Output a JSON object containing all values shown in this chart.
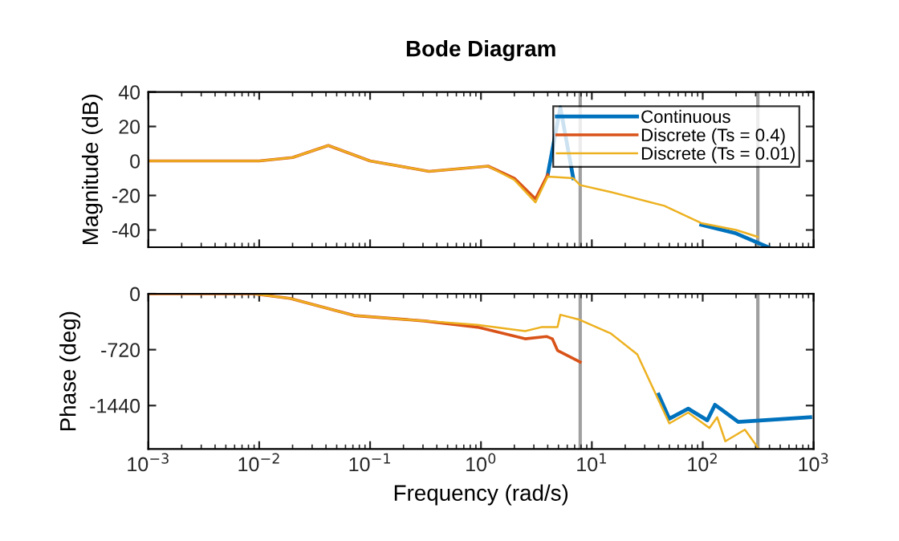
{
  "chart_data": [
    {
      "type": "line",
      "title": "Bode Diagram",
      "ylabel": "Magnitude (dB)",
      "log": "x",
      "xlim": [
        0.001,
        1000
      ],
      "xticks": [
        {
          "value": 0.001,
          "label": null
        },
        {
          "value": 0.01,
          "label": null
        },
        {
          "value": 0.1,
          "label": null
        },
        {
          "value": 1,
          "label": null
        },
        {
          "value": 10,
          "label": null
        },
        {
          "value": 100,
          "label": null
        },
        {
          "value": 1000,
          "label": null
        }
      ],
      "ylim": [
        -50,
        40
      ],
      "yticks": [
        -40,
        -20,
        0,
        20,
        40
      ],
      "tick_labels": "y",
      "grid": false,
      "legend": "top right",
      "ref_lines": [
        {
          "axis": "x",
          "value": 7.854,
          "color": "#a0a0a0"
        },
        {
          "axis": "x",
          "value": 314.16,
          "color": "#a0a0a0"
        }
      ],
      "series": [
        {
          "name": "Continuous",
          "color": "#0072bd",
          "x": [
            4.0,
            5.2,
            6.8,
            45,
            97,
            200,
            390
          ],
          "values": [
            -8,
            31,
            -10,
            null,
            -37,
            -42,
            -50
          ]
        },
        {
          "name": "Discrete (Ts = 0.4)",
          "color": "#d95319",
          "x": [
            0.001,
            0.01,
            0.02,
            0.042,
            0.1,
            0.34,
            1.16,
            2.0,
            3.1,
            4.0
          ],
          "values": [
            0,
            0,
            2,
            9,
            0,
            -6,
            -3,
            -10,
            -22,
            -8
          ]
        },
        {
          "name": "Discrete (Ts = 0.01)",
          "color": "#edb120",
          "x": [
            0.001,
            0.01,
            0.02,
            0.042,
            0.1,
            0.34,
            1.16,
            2.0,
            3.1,
            4.0,
            6.8,
            7.85,
            14.8,
            45,
            97,
            200,
            314.16
          ],
          "values": [
            0,
            0,
            2,
            9,
            0,
            -6,
            -3,
            -11,
            -24,
            -9,
            -10,
            -14,
            -18,
            -26,
            -36,
            -40,
            -44
          ]
        }
      ]
    },
    {
      "type": "line",
      "xlabel": "Frequency (rad/s)",
      "ylabel": "Phase (deg)",
      "log": "x",
      "xlim": [
        0.001,
        1000
      ],
      "xticks": [
        {
          "value": 0.001,
          "label": "10$^{−3}$"
        },
        {
          "value": 0.01,
          "label": "10$^{−2}$"
        },
        {
          "value": 0.1,
          "label": "10$^{−1}$"
        },
        {
          "value": 1,
          "label": "10$^{0}$"
        },
        {
          "value": 10,
          "label": "10$^{1}$"
        },
        {
          "value": 100,
          "label": "10$^{2}$"
        },
        {
          "value": 1000,
          "label": "10$^{3}$"
        }
      ],
      "ylim": [
        -2000,
        0
      ],
      "yticks": [
        -1440,
        -720,
        0
      ],
      "grid": false,
      "ref_lines": [
        {
          "axis": "x",
          "value": 7.854,
          "color": "#a0a0a0"
        },
        {
          "axis": "x",
          "value": 314.16,
          "color": "#a0a0a0"
        }
      ],
      "series": [
        {
          "color": "#0072bd",
          "x": [
            40,
            50,
            74,
            110,
            129,
            209,
            933
          ],
          "values": [
            -1300,
            -1610,
            -1480,
            -1630,
            -1430,
            -1650,
            -1590
          ]
        },
        {
          "color": "#d95319",
          "x": [
            0.001,
            0.0089,
            0.019,
            0.047,
            0.072,
            0.31,
            0.93,
            2.5,
            3.9,
            4.4,
            4.9,
            7.85
          ],
          "values": [
            0,
            0,
            -60,
            -210,
            -280,
            -350,
            -430,
            -580,
            -550,
            -580,
            -730,
            -880
          ]
        },
        {
          "color": "#edb120",
          "x": [
            0.001,
            0.0089,
            0.019,
            0.047,
            0.072,
            0.31,
            0.93,
            2.5,
            3.5,
            4.4,
            4.9,
            5.2,
            7.6,
            14.8,
            25.7,
            50,
            74,
            115,
            135,
            160,
            240,
            314.16
          ],
          "values": [
            0,
            0,
            -60,
            -210,
            -280,
            -350,
            -400,
            -480,
            -430,
            -430,
            -430,
            -270,
            -330,
            -510,
            -780,
            -1670,
            -1530,
            -1730,
            -1590,
            -1900,
            -1750,
            -1980
          ]
        }
      ]
    }
  ]
}
